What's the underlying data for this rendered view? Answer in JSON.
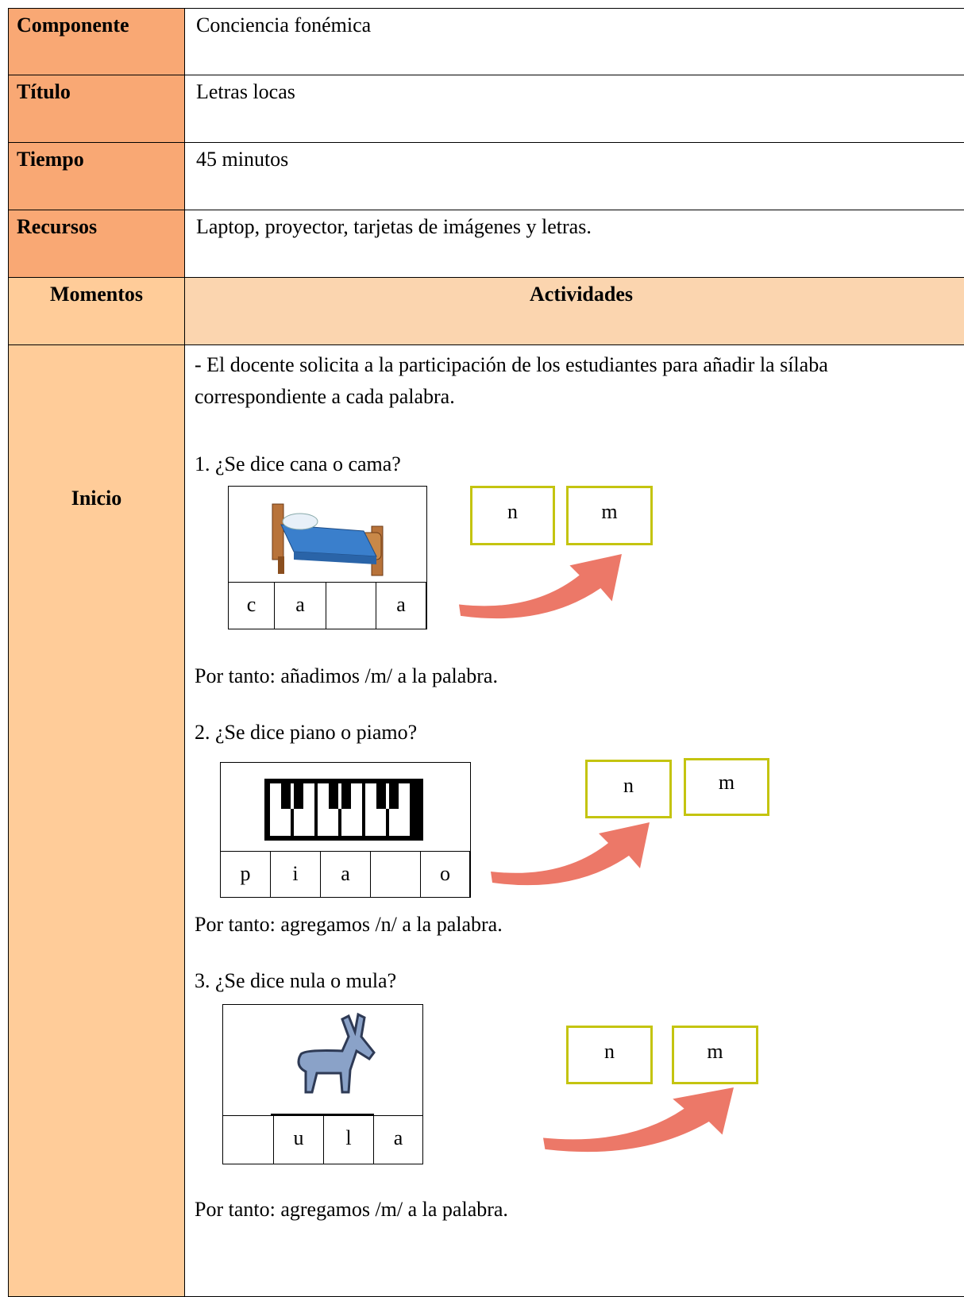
{
  "table": {
    "rows": [
      [
        "Componente",
        "Conciencia fonémica"
      ],
      [
        "Título",
        "Letras locas"
      ],
      [
        "Tiempo",
        "45 minutos"
      ],
      [
        "Recursos",
        "Laptop, proyector, tarjetas de imágenes y letras."
      ]
    ],
    "header": [
      "Momentos",
      "Actividades"
    ],
    "moment": "Inicio",
    "intro": [
      "- El docente solicita a la participación de los estudiantes para añadir la sílaba",
      "correspondiente a cada palabra."
    ],
    "exercises": [
      {
        "question": "1. ¿Se dice cana o cama?",
        "letters": [
          "c",
          "a",
          "a"
        ],
        "options": [
          "n",
          "m"
        ],
        "conclusion": "Por tanto: añadimos /m/ a la palabra."
      },
      {
        "question": "2. ¿Se dice piano o piamo?",
        "letters": [
          "p",
          "i",
          "a",
          "o"
        ],
        "options": [
          "n",
          "m"
        ],
        "conclusion": "Por tanto: agregamos /n/ a la palabra."
      },
      {
        "question": "3. ¿Se dice nula o mula?",
        "letters": [
          "u",
          "l",
          "a"
        ],
        "options": [
          "n",
          "m"
        ],
        "conclusion": "Por tanto: agregamos /m/ a la palabra."
      }
    ]
  }
}
